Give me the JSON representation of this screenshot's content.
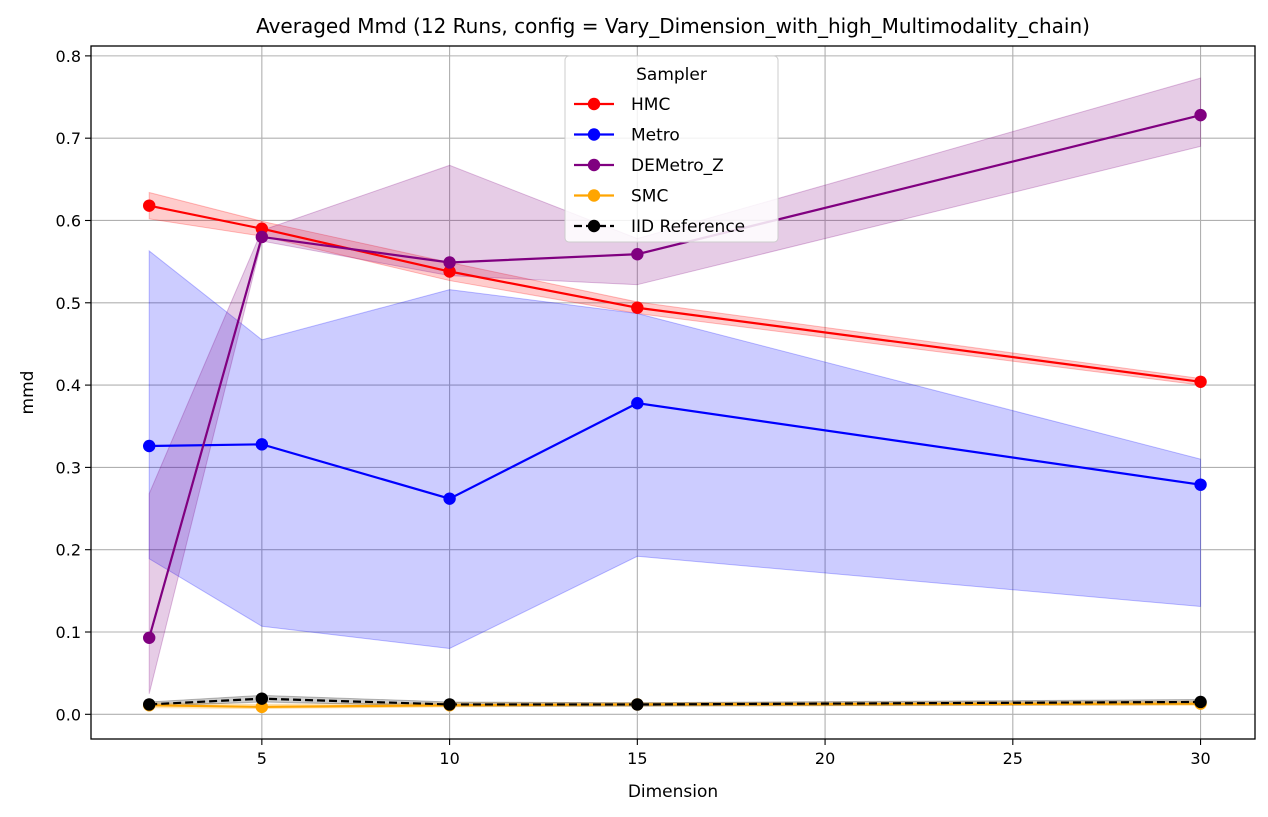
{
  "chart_data": {
    "type": "line",
    "title": "Averaged Mmd (12 Runs, config = Vary_Dimension_with_high_Multimodality_chain)",
    "xlabel": "Dimension",
    "ylabel": "mmd",
    "xlim": [
      0.45,
      31.45
    ],
    "ylim": [
      -0.03,
      0.812
    ],
    "xticks": [
      5,
      10,
      15,
      20,
      25,
      30
    ],
    "yticks": [
      0.0,
      0.1,
      0.2,
      0.3,
      0.4,
      0.5,
      0.6,
      0.7,
      0.8
    ],
    "xtick_labels": [
      "5",
      "10",
      "15",
      "20",
      "25",
      "30"
    ],
    "ytick_labels": [
      "0.0",
      "0.1",
      "0.2",
      "0.3",
      "0.4",
      "0.5",
      "0.6",
      "0.7",
      "0.8"
    ],
    "grid": true,
    "legend_title": "Sampler",
    "legend_position": "upper-center",
    "x": [
      2,
      5,
      10,
      15,
      30
    ],
    "series": [
      {
        "name": "HMC",
        "color": "#ff0000",
        "dashed": false,
        "values": [
          0.618,
          0.59,
          0.538,
          0.494,
          0.404
        ],
        "lower": [
          0.602,
          0.581,
          0.527,
          0.487,
          0.4
        ],
        "upper": [
          0.634,
          0.599,
          0.549,
          0.501,
          0.408
        ]
      },
      {
        "name": "Metro",
        "color": "#0000ff",
        "dashed": false,
        "values": [
          0.326,
          0.328,
          0.262,
          0.378,
          0.279
        ],
        "lower": [
          0.189,
          0.107,
          0.08,
          0.192,
          0.131
        ],
        "upper": [
          0.563,
          0.455,
          0.516,
          0.487,
          0.31
        ]
      },
      {
        "name": "DEMetro_Z",
        "color": "#800080",
        "dashed": false,
        "values": [
          0.093,
          0.58,
          0.549,
          0.559,
          0.728
        ],
        "lower": [
          0.025,
          0.575,
          0.533,
          0.522,
          0.69
        ],
        "upper": [
          0.268,
          0.588,
          0.667,
          0.578,
          0.773
        ]
      },
      {
        "name": "SMC",
        "color": "#ffa500",
        "dashed": false,
        "values": [
          0.011,
          0.009,
          0.011,
          0.012,
          0.013
        ],
        "lower": [
          0.008,
          0.007,
          0.009,
          0.01,
          0.011
        ],
        "upper": [
          0.014,
          0.012,
          0.014,
          0.014,
          0.016
        ]
      },
      {
        "name": "IID Reference",
        "color": "#000000",
        "dashed": true,
        "values": [
          0.012,
          0.019,
          0.012,
          0.012,
          0.015
        ],
        "lower": [
          0.01,
          0.015,
          0.01,
          0.01,
          0.012
        ],
        "upper": [
          0.015,
          0.023,
          0.015,
          0.014,
          0.018
        ]
      }
    ]
  }
}
